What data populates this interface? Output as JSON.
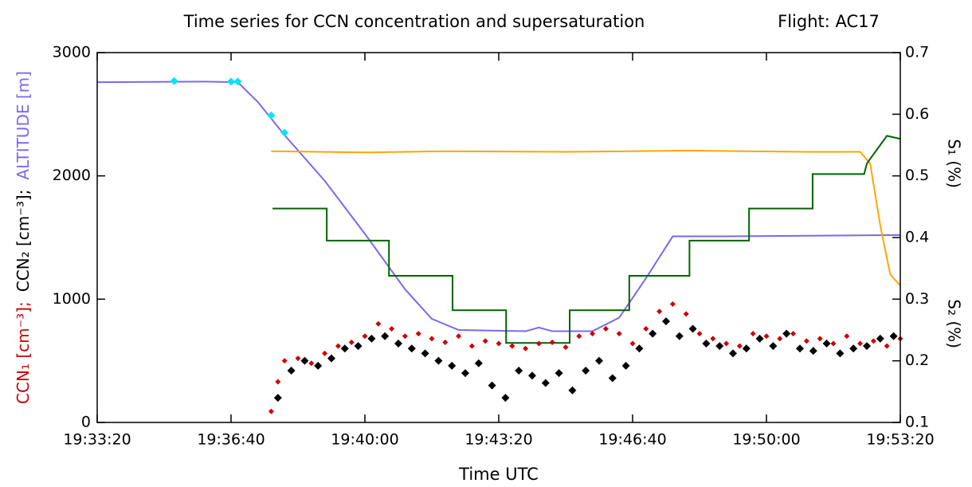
{
  "chart_data": {
    "type": "line",
    "title": "Time series for CCN concentration and supersaturation",
    "subtitle": "Flight: AC17",
    "xlabel": "Time UTC",
    "ylabel_parts": [
      {
        "text": "CCN₁ [cm⁻³];",
        "color": "#cc0000"
      },
      {
        "text": "CCN₂ [cm⁻³];",
        "color": "#000000"
      },
      {
        "text": "ALTITUDE [m]",
        "color": "#7b68ee"
      }
    ],
    "y2label_parts": [
      {
        "text": "S₂ (%)",
        "color": "#006400"
      },
      {
        "text": "S₁ (%)",
        "color": "#ffa500"
      }
    ],
    "xlim": [
      "19:33:20",
      "19:53:20"
    ],
    "xticks": [
      "19:33:20",
      "19:36:40",
      "19:40:00",
      "19:43:20",
      "19:46:40",
      "19:50:00",
      "19:53:20"
    ],
    "ylim": [
      0,
      3000
    ],
    "yticks": [
      0,
      1000,
      2000,
      3000
    ],
    "y2lim": [
      0.1,
      0.7
    ],
    "y2ticks": [
      0.1,
      0.2,
      0.3,
      0.4,
      0.5,
      0.6,
      0.7
    ],
    "series": [
      {
        "kind": "line",
        "color": "#7b68ee",
        "axis": "y",
        "x": [
          "19:33:20",
          "19:36:00",
          "19:36:50",
          "19:37:20",
          "19:38:00",
          "19:39:00",
          "19:40:00",
          "19:41:00",
          "19:41:40",
          "19:42:20",
          "19:44:00",
          "19:44:20",
          "19:44:40",
          "19:45:40",
          "19:46:20",
          "19:47:00",
          "19:47:40",
          "19:49:00",
          "19:53:20"
        ],
        "values": [
          2760,
          2765,
          2760,
          2600,
          2330,
          1960,
          1530,
          1080,
          840,
          750,
          740,
          770,
          740,
          740,
          850,
          1170,
          1510,
          1510,
          1520
        ]
      },
      {
        "kind": "line",
        "color": "#ffa500",
        "axis": "y2",
        "x": [
          "19:37:40",
          "19:40:00",
          "19:42:00",
          "19:45:00",
          "19:48:00",
          "19:51:00",
          "19:52:20",
          "19:52:35",
          "19:52:50",
          "19:53:05",
          "19:53:20"
        ],
        "values": [
          0.54,
          0.538,
          0.54,
          0.539,
          0.541,
          0.539,
          0.539,
          0.52,
          0.42,
          0.34,
          0.322
        ]
      },
      {
        "kind": "line",
        "color": "#006400",
        "axis": "y2",
        "x": [
          "19:37:42",
          "19:39:03",
          "19:39:03",
          "19:40:36",
          "19:40:36",
          "19:42:11",
          "19:42:11",
          "19:43:31",
          "19:43:31",
          "19:45:06",
          "19:45:06",
          "19:46:35",
          "19:46:35",
          "19:48:05",
          "19:48:05",
          "19:49:34",
          "19:49:34",
          "19:51:09",
          "19:51:09",
          "19:52:26",
          "19:52:30",
          "19:53:00",
          "19:53:20"
        ],
        "values": [
          0.447,
          0.447,
          0.395,
          0.395,
          0.338,
          0.338,
          0.282,
          0.282,
          0.229,
          0.229,
          0.282,
          0.282,
          0.338,
          0.338,
          0.395,
          0.395,
          0.447,
          0.447,
          0.503,
          0.503,
          0.52,
          0.565,
          0.56
        ]
      },
      {
        "kind": "scatter",
        "color": "#00e5ff",
        "axis": "y",
        "size": 5,
        "x": [
          "19:35:15",
          "19:36:40",
          "19:36:50",
          "19:37:40",
          "19:38:00"
        ],
        "values": [
          2770,
          2765,
          2765,
          2490,
          2350
        ]
      },
      {
        "kind": "scatter",
        "color": "#cc0000",
        "axis": "y",
        "size": 3.5,
        "x": [
          "19:37:40",
          "19:37:50",
          "19:38:00",
          "19:38:20",
          "19:38:40",
          "19:39:00",
          "19:39:20",
          "19:39:40",
          "19:40:00",
          "19:40:20",
          "19:40:40",
          "19:41:00",
          "19:41:20",
          "19:41:40",
          "19:42:00",
          "19:42:20",
          "19:42:40",
          "19:43:00",
          "19:43:20",
          "19:43:40",
          "19:44:00",
          "19:44:20",
          "19:44:40",
          "19:45:00",
          "19:45:20",
          "19:45:40",
          "19:46:00",
          "19:46:20",
          "19:46:40",
          "19:47:00",
          "19:47:20",
          "19:47:40",
          "19:48:00",
          "19:48:20",
          "19:48:40",
          "19:49:00",
          "19:49:20",
          "19:49:40",
          "19:50:00",
          "19:50:20",
          "19:50:40",
          "19:51:00",
          "19:51:20",
          "19:51:40",
          "19:52:00",
          "19:52:20",
          "19:52:40",
          "19:53:00",
          "19:53:20"
        ],
        "values": [
          90,
          330,
          500,
          520,
          480,
          560,
          620,
          650,
          700,
          800,
          760,
          700,
          720,
          680,
          650,
          700,
          620,
          660,
          640,
          620,
          600,
          640,
          650,
          610,
          700,
          720,
          760,
          720,
          640,
          760,
          900,
          960,
          880,
          720,
          680,
          640,
          620,
          720,
          700,
          680,
          720,
          660,
          680,
          640,
          700,
          640,
          660,
          620,
          680
        ]
      },
      {
        "kind": "scatter",
        "color": "#000000",
        "axis": "y",
        "size": 5,
        "x": [
          "19:37:50",
          "19:38:10",
          "19:38:30",
          "19:38:50",
          "19:39:10",
          "19:39:30",
          "19:39:50",
          "19:40:10",
          "19:40:30",
          "19:40:50",
          "19:41:10",
          "19:41:30",
          "19:41:50",
          "19:42:10",
          "19:42:30",
          "19:42:50",
          "19:43:10",
          "19:43:30",
          "19:43:50",
          "19:44:10",
          "19:44:30",
          "19:44:50",
          "19:45:10",
          "19:45:30",
          "19:45:50",
          "19:46:10",
          "19:46:30",
          "19:46:50",
          "19:47:10",
          "19:47:30",
          "19:47:50",
          "19:48:10",
          "19:48:30",
          "19:48:50",
          "19:49:10",
          "19:49:30",
          "19:49:50",
          "19:50:10",
          "19:50:30",
          "19:50:50",
          "19:51:10",
          "19:51:30",
          "19:51:50",
          "19:52:10",
          "19:52:30",
          "19:52:50",
          "19:53:10"
        ],
        "values": [
          200,
          420,
          500,
          460,
          520,
          600,
          620,
          680,
          700,
          640,
          600,
          560,
          500,
          460,
          400,
          480,
          300,
          200,
          420,
          380,
          320,
          400,
          260,
          420,
          500,
          360,
          460,
          600,
          720,
          820,
          700,
          760,
          640,
          620,
          560,
          600,
          680,
          620,
          720,
          600,
          580,
          640,
          560,
          600,
          620,
          680,
          700
        ]
      }
    ]
  }
}
